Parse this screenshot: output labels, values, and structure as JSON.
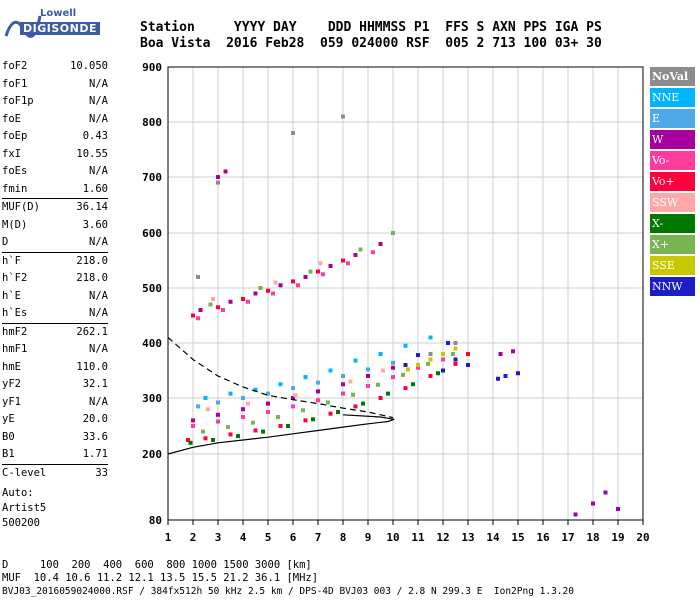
{
  "logo": {
    "top": "Lowell",
    "bottom": "DIGISONDE"
  },
  "header": {
    "line1": "Station     YYYY DAY    DDD HHMMSS P1  FFS S AXN PPS IGA PS",
    "line2": "Boa Vista  2016 Feb28  059 024000 RSF  005 2 713 100 03+ 30"
  },
  "params": [
    {
      "k": "foF2",
      "v": "10.050"
    },
    {
      "k": "foF1",
      "v": "N/A"
    },
    {
      "k": "foF1p",
      "v": "N/A"
    },
    {
      "k": "foE",
      "v": "N/A"
    },
    {
      "k": "foEp",
      "v": "0.43"
    },
    {
      "k": "fxI",
      "v": "10.55"
    },
    {
      "k": "foEs",
      "v": "N/A"
    },
    {
      "k": "fmin",
      "v": "1.60"
    },
    {
      "k": "MUF(D)",
      "v": "36.14",
      "sep": true
    },
    {
      "k": "M(D)",
      "v": "3.60"
    },
    {
      "k": "D",
      "v": "N/A"
    },
    {
      "k": "h`F",
      "v": "218.0",
      "sep": true
    },
    {
      "k": "h`F2",
      "v": "218.0"
    },
    {
      "k": "h`E",
      "v": "N/A"
    },
    {
      "k": "h`Es",
      "v": "N/A"
    },
    {
      "k": "hmF2",
      "v": "262.1",
      "sep": true
    },
    {
      "k": "hmF1",
      "v": "N/A"
    },
    {
      "k": "hmE",
      "v": "110.0"
    },
    {
      "k": "yF2",
      "v": "32.1"
    },
    {
      "k": "yF1",
      "v": "N/A"
    },
    {
      "k": "yE",
      "v": "20.0"
    },
    {
      "k": "B0",
      "v": "33.6"
    },
    {
      "k": "B1",
      "v": "1.71"
    },
    {
      "k": "C-level",
      "v": "33",
      "sep": true
    }
  ],
  "auto": {
    "line1": "Auto:",
    "line2": "Artist5",
    "line3": "500200"
  },
  "legend": [
    {
      "label": "NoVal",
      "color": "#8c8c8c",
      "bold": true
    },
    {
      "label": "NNE",
      "color": "#00b4ff"
    },
    {
      "label": "E",
      "color": "#4fa8e8"
    },
    {
      "label": "W",
      "color": "#a8009c"
    },
    {
      "label": "Vo-",
      "color": "#ff3c9c"
    },
    {
      "label": "Vo+",
      "color": "#ff003c"
    },
    {
      "label": "SSW",
      "color": "#ffa8a8"
    },
    {
      "label": "X-",
      "color": "#007800"
    },
    {
      "label": "X+",
      "color": "#78b450"
    },
    {
      "label": "SSE",
      "color": "#c8c800"
    },
    {
      "label": "NNW",
      "color": "#1c1cc8"
    }
  ],
  "chart_data": {
    "type": "scatter",
    "x_ticks": [
      1,
      2,
      3,
      4,
      5,
      6,
      7,
      8,
      9,
      10,
      11,
      12,
      13,
      14,
      15,
      16,
      17,
      18,
      19,
      20
    ],
    "y_ticks": [
      900,
      800,
      700,
      600,
      500,
      400,
      300,
      200,
      80
    ],
    "xlim": [
      1,
      20
    ],
    "ylim": [
      80,
      900
    ],
    "grid": true,
    "series": [
      {
        "name": "NoVal",
        "color": "#8c8c8c",
        "points": [
          [
            2.2,
            520
          ],
          [
            3.0,
            690
          ],
          [
            6.0,
            780
          ],
          [
            8.0,
            810
          ],
          [
            11.5,
            380
          ],
          [
            12.5,
            400
          ]
        ]
      },
      {
        "name": "NNE",
        "color": "#00b4ff",
        "points": [
          [
            2.5,
            300
          ],
          [
            3.5,
            308
          ],
          [
            4.5,
            315
          ],
          [
            5.5,
            325
          ],
          [
            6.5,
            338
          ],
          [
            7.5,
            350
          ],
          [
            8.5,
            368
          ],
          [
            9.5,
            380
          ],
          [
            10.5,
            395
          ],
          [
            11.5,
            410
          ]
        ]
      },
      {
        "name": "E",
        "color": "#4fa8e8",
        "points": [
          [
            2.2,
            285
          ],
          [
            3.0,
            292
          ],
          [
            4.0,
            300
          ],
          [
            5.0,
            308
          ],
          [
            6.0,
            318
          ],
          [
            7.0,
            328
          ],
          [
            8.0,
            340
          ],
          [
            9.0,
            352
          ],
          [
            10.0,
            364
          ]
        ]
      },
      {
        "name": "W",
        "color": "#a8009c",
        "points": [
          [
            2.0,
            260
          ],
          [
            3.0,
            270
          ],
          [
            4.0,
            280
          ],
          [
            5.0,
            290
          ],
          [
            6.0,
            300
          ],
          [
            7.0,
            312
          ],
          [
            8.0,
            325
          ],
          [
            9.0,
            340
          ],
          [
            10.0,
            355
          ],
          [
            14.3,
            380
          ],
          [
            14.8,
            385
          ],
          [
            17.3,
            90
          ],
          [
            18.0,
            110
          ],
          [
            18.5,
            130
          ],
          [
            19.0,
            100
          ],
          [
            2.3,
            460
          ],
          [
            3.5,
            475
          ],
          [
            4.5,
            490
          ],
          [
            5.5,
            505
          ],
          [
            6.5,
            520
          ],
          [
            7.5,
            540
          ],
          [
            8.5,
            560
          ],
          [
            9.5,
            580
          ],
          [
            3.0,
            700
          ],
          [
            3.3,
            710
          ]
        ]
      },
      {
        "name": "Vo-",
        "color": "#ff3c9c",
        "points": [
          [
            2.0,
            250
          ],
          [
            3.0,
            258
          ],
          [
            4.0,
            266
          ],
          [
            5.0,
            275
          ],
          [
            6.0,
            285
          ],
          [
            7.0,
            296
          ],
          [
            8.0,
            308
          ],
          [
            9.0,
            322
          ],
          [
            10.0,
            338
          ],
          [
            11.0,
            355
          ],
          [
            12.0,
            370
          ],
          [
            2.2,
            445
          ],
          [
            3.2,
            460
          ],
          [
            4.2,
            475
          ],
          [
            5.2,
            490
          ],
          [
            6.2,
            505
          ],
          [
            7.2,
            525
          ],
          [
            8.2,
            545
          ],
          [
            9.2,
            565
          ]
        ]
      },
      {
        "name": "Vo+",
        "color": "#ff003c",
        "points": [
          [
            1.8,
            225
          ],
          [
            2.5,
            228
          ],
          [
            3.5,
            235
          ],
          [
            4.5,
            242
          ],
          [
            5.5,
            250
          ],
          [
            6.5,
            260
          ],
          [
            7.5,
            272
          ],
          [
            8.5,
            285
          ],
          [
            9.5,
            300
          ],
          [
            10.5,
            318
          ],
          [
            11.5,
            340
          ],
          [
            12.5,
            362
          ],
          [
            13.0,
            380
          ],
          [
            2.0,
            450
          ],
          [
            3.0,
            465
          ],
          [
            4.0,
            480
          ],
          [
            5.0,
            495
          ],
          [
            6.0,
            512
          ],
          [
            7.0,
            530
          ],
          [
            8.0,
            550
          ]
        ]
      },
      {
        "name": "SSW",
        "color": "#ffa8a8",
        "points": [
          [
            2.6,
            280
          ],
          [
            4.2,
            290
          ],
          [
            6.1,
            305
          ],
          [
            8.3,
            330
          ],
          [
            9.6,
            350
          ],
          [
            2.8,
            480
          ],
          [
            5.3,
            510
          ],
          [
            7.1,
            545
          ]
        ]
      },
      {
        "name": "X-",
        "color": "#007800",
        "points": [
          [
            1.9,
            220
          ],
          [
            2.8,
            225
          ],
          [
            3.8,
            232
          ],
          [
            4.8,
            240
          ],
          [
            5.8,
            250
          ],
          [
            6.8,
            262
          ],
          [
            7.8,
            275
          ],
          [
            8.8,
            290
          ],
          [
            9.8,
            308
          ],
          [
            10.8,
            325
          ],
          [
            11.8,
            345
          ]
        ]
      },
      {
        "name": "X+",
        "color": "#78b450",
        "points": [
          [
            2.4,
            240
          ],
          [
            3.4,
            248
          ],
          [
            4.4,
            256
          ],
          [
            5.4,
            266
          ],
          [
            6.4,
            278
          ],
          [
            7.4,
            292
          ],
          [
            8.4,
            306
          ],
          [
            9.4,
            324
          ],
          [
            10.4,
            342
          ],
          [
            11.4,
            362
          ],
          [
            12.4,
            380
          ],
          [
            2.7,
            470
          ],
          [
            4.7,
            500
          ],
          [
            6.7,
            530
          ],
          [
            8.7,
            570
          ],
          [
            10.0,
            600
          ]
        ]
      },
      {
        "name": "SSE",
        "color": "#c8c800",
        "points": [
          [
            11.0,
            360
          ],
          [
            11.5,
            370
          ],
          [
            12.0,
            380
          ],
          [
            12.5,
            390
          ],
          [
            10.6,
            352
          ]
        ]
      },
      {
        "name": "NNW",
        "color": "#1c1cc8",
        "points": [
          [
            10.5,
            360
          ],
          [
            11.0,
            378
          ],
          [
            12.0,
            350
          ],
          [
            12.5,
            370
          ],
          [
            13.0,
            360
          ],
          [
            14.5,
            340
          ],
          [
            15.0,
            345
          ],
          [
            14.2,
            335
          ],
          [
            12.2,
            400
          ]
        ]
      }
    ],
    "profile_dashed": [
      [
        1,
        410
      ],
      [
        2,
        370
      ],
      [
        3,
        340
      ],
      [
        4,
        320
      ],
      [
        5,
        305
      ],
      [
        6,
        297
      ],
      [
        7,
        290
      ],
      [
        8,
        282
      ],
      [
        9,
        275
      ],
      [
        10,
        265
      ]
    ],
    "profile_solid": [
      [
        1,
        200
      ],
      [
        2,
        212
      ],
      [
        3,
        220
      ],
      [
        4,
        225
      ],
      [
        5,
        230
      ],
      [
        6,
        236
      ],
      [
        7,
        242
      ],
      [
        8,
        248
      ],
      [
        9,
        254
      ],
      [
        9.8,
        258
      ],
      [
        10.05,
        262
      ],
      [
        9.5,
        266
      ],
      [
        8,
        270
      ]
    ]
  },
  "footer": {
    "line1": "D     100  200  400  600  800 1000 1500 3000 [km]",
    "line2": "MUF  10.4 10.6 11.2 12.1 13.5 15.5 21.2 36.1 [MHz]",
    "line3": "BVJ03_2016059024000.RSF / 384fx512h 50 kHz 2.5 km / DPS-4D BVJ03 003 / 2.8 N 299.3 E  Ion2Png 1.3.20"
  }
}
